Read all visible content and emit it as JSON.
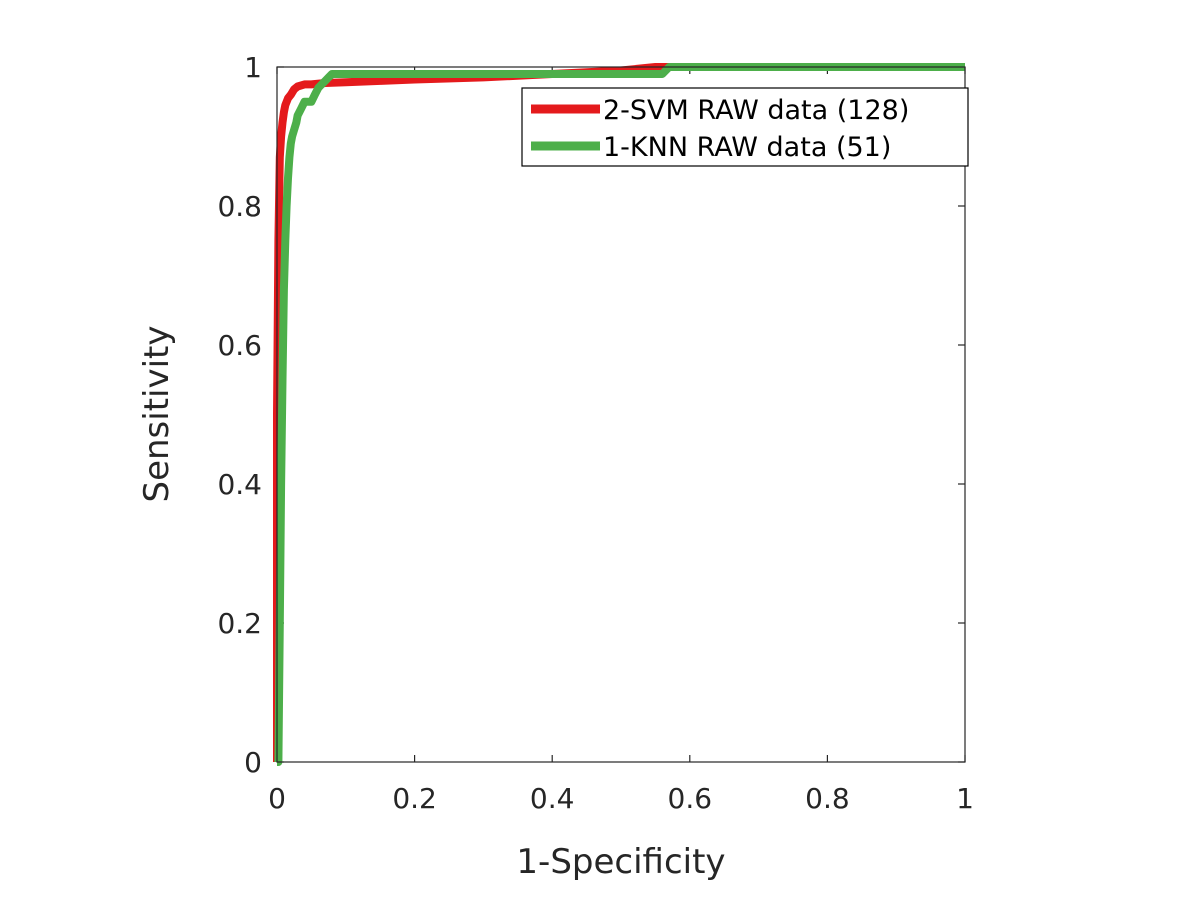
{
  "chart_data": {
    "type": "line",
    "title": "",
    "xlabel": "1-Specificity",
    "ylabel": "Sensitivity",
    "xlim": [
      0,
      1
    ],
    "ylim": [
      0,
      1
    ],
    "xticks": [
      0,
      0.2,
      0.4,
      0.6,
      0.8,
      1
    ],
    "yticks": [
      0,
      0.2,
      0.4,
      0.6,
      0.8,
      1
    ],
    "xtick_labels": [
      "0",
      "0.2",
      "0.4",
      "0.6",
      "0.8",
      "1"
    ],
    "ytick_labels": [
      "0",
      "0.2",
      "0.4",
      "0.6",
      "0.8",
      "1"
    ],
    "grid": false,
    "legend_position": "top-right",
    "series": [
      {
        "name": "2-SVM RAW data (128)",
        "color": "#e41a1c",
        "x": [
          0,
          0,
          0.002,
          0.004,
          0.006,
          0.008,
          0.01,
          0.012,
          0.016,
          0.02,
          0.025,
          0.03,
          0.04,
          0.05,
          0.07,
          0.1,
          0.15,
          0.2,
          0.3,
          0.4,
          0.5,
          0.55,
          0.6,
          0.7,
          0.8,
          0.9,
          1
        ],
        "y": [
          0,
          0.5,
          0.75,
          0.87,
          0.9,
          0.92,
          0.935,
          0.945,
          0.955,
          0.96,
          0.968,
          0.972,
          0.975,
          0.975,
          0.977,
          0.978,
          0.98,
          0.982,
          0.985,
          0.99,
          0.995,
          1,
          1,
          1,
          1,
          1,
          1
        ]
      },
      {
        "name": "1-KNN RAW data (51)",
        "color": "#4daf4a",
        "x": [
          0,
          0.002,
          0.004,
          0.006,
          0.008,
          0.01,
          0.012,
          0.014,
          0.016,
          0.018,
          0.02,
          0.022,
          0.025,
          0.028,
          0.03,
          0.035,
          0.04,
          0.045,
          0.05,
          0.055,
          0.06,
          0.065,
          0.07,
          0.075,
          0.08,
          0.1,
          0.2,
          0.3,
          0.4,
          0.5,
          0.56,
          0.57,
          0.6,
          0.7,
          0.8,
          0.9,
          1
        ],
        "y": [
          0,
          0,
          0.2,
          0.4,
          0.55,
          0.68,
          0.75,
          0.8,
          0.84,
          0.87,
          0.89,
          0.9,
          0.91,
          0.92,
          0.93,
          0.94,
          0.95,
          0.95,
          0.95,
          0.96,
          0.97,
          0.975,
          0.98,
          0.985,
          0.99,
          0.99,
          0.99,
          0.99,
          0.99,
          0.99,
          0.99,
          1,
          1,
          1,
          1,
          1,
          1
        ]
      }
    ]
  }
}
